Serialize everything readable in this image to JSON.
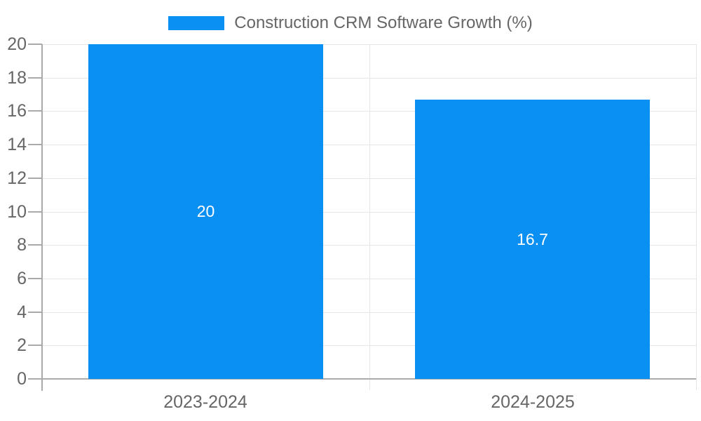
{
  "chart_data": {
    "type": "bar",
    "title": "Construction CRM Software Growth (%)",
    "legend": {
      "position": "top",
      "label": "Construction CRM Software Growth (%)"
    },
    "categories": [
      "2023-2024",
      "2024-2025"
    ],
    "values": [
      20,
      16.7
    ],
    "data_labels": [
      "20",
      "16.7"
    ],
    "ylim": [
      0,
      20
    ],
    "yticks": [
      0,
      2,
      4,
      6,
      8,
      10,
      12,
      14,
      16,
      18,
      20
    ],
    "grid": true,
    "colors": {
      "bar": "#0a8ff3",
      "grid": "#e6e6e6",
      "axis": "#ababab",
      "tick": "#a9a9a9",
      "text": "#666666",
      "data_label": "#ffffff",
      "background": "#ffffff"
    }
  }
}
